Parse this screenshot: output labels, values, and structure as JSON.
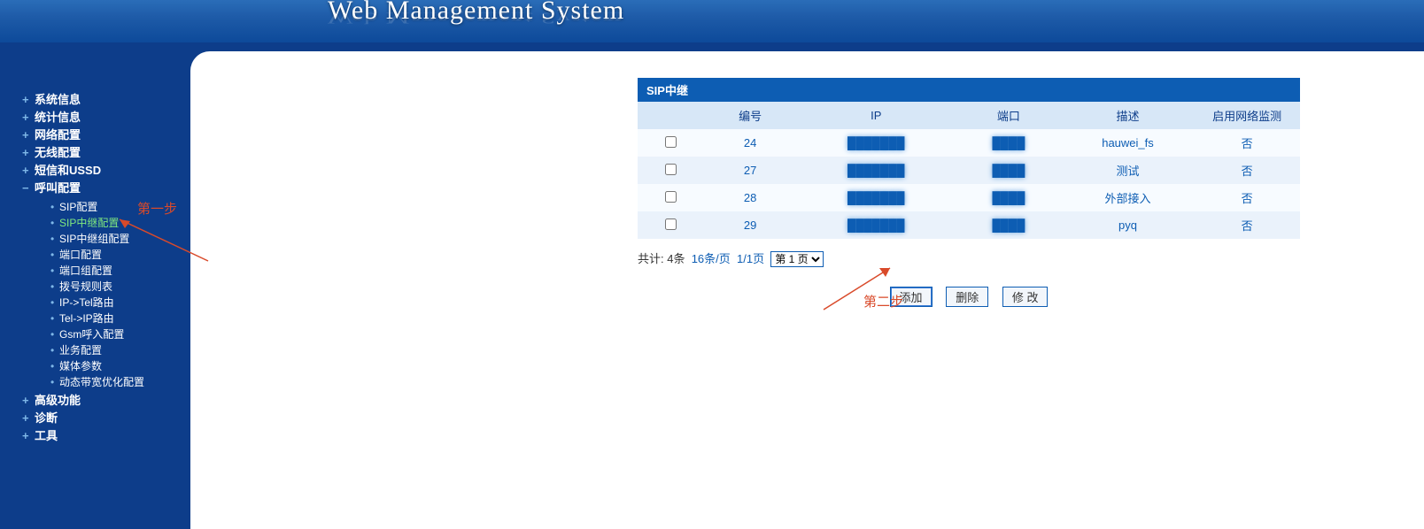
{
  "header": {
    "title": "Web Management System"
  },
  "sidebar": {
    "top_items": [
      {
        "label": "系统信息",
        "open": false
      },
      {
        "label": "统计信息",
        "open": false
      },
      {
        "label": "网络配置",
        "open": false
      },
      {
        "label": "无线配置",
        "open": false
      },
      {
        "label": "短信和USSD",
        "open": false
      },
      {
        "label": "呼叫配置",
        "open": true,
        "children": [
          {
            "label": "SIP配置",
            "active": false
          },
          {
            "label": "SIP中继配置",
            "active": true
          },
          {
            "label": "SIP中继组配置",
            "active": false
          },
          {
            "label": "端口配置",
            "active": false
          },
          {
            "label": "端口组配置",
            "active": false
          },
          {
            "label": "拨号规则表",
            "active": false
          },
          {
            "label": "IP->Tel路由",
            "active": false
          },
          {
            "label": "Tel->IP路由",
            "active": false
          },
          {
            "label": "Gsm呼入配置",
            "active": false
          },
          {
            "label": "业务配置",
            "active": false
          },
          {
            "label": "媒体参数",
            "active": false
          },
          {
            "label": "动态带宽优化配置",
            "active": false
          }
        ]
      },
      {
        "label": "高级功能",
        "open": false
      },
      {
        "label": "诊断",
        "open": false
      },
      {
        "label": "工具",
        "open": false
      }
    ]
  },
  "panel": {
    "title": "SIP中继",
    "columns": [
      "",
      "编号",
      "IP",
      "端口",
      "描述",
      "启用网络监测"
    ],
    "rows": [
      {
        "id": "24",
        "ip": "",
        "port": "",
        "desc": "hauwei_fs",
        "monitor": "否"
      },
      {
        "id": "27",
        "ip": "",
        "port": "",
        "desc": "测试",
        "monitor": "否"
      },
      {
        "id": "28",
        "ip": "",
        "port": "",
        "desc": "外部接入",
        "monitor": "否"
      },
      {
        "id": "29",
        "ip": "",
        "port": "",
        "desc": "pyq",
        "monitor": "否"
      }
    ],
    "pager": {
      "total_label": "共计: 4条",
      "per_page_label": "16条/页",
      "page_range_label": "1/1页",
      "page_select": "第 1 页"
    },
    "buttons": {
      "add": "添加",
      "delete": "删除",
      "modify": "修 改"
    }
  },
  "annotations": {
    "step1": "第一步",
    "step2": "第二步"
  },
  "colors": {
    "header_bg": "#1e5ba8",
    "sidebar_bg": "#0d3d8a",
    "panel_title_bg": "#0d5db3",
    "th_bg": "#d7e7f7",
    "row_odd_bg": "#f7fbff",
    "row_even_bg": "#eaf2fb",
    "link_color": "#0d5db3",
    "active_nav": "#7fe87f",
    "annotation_color": "#d94a2a"
  }
}
